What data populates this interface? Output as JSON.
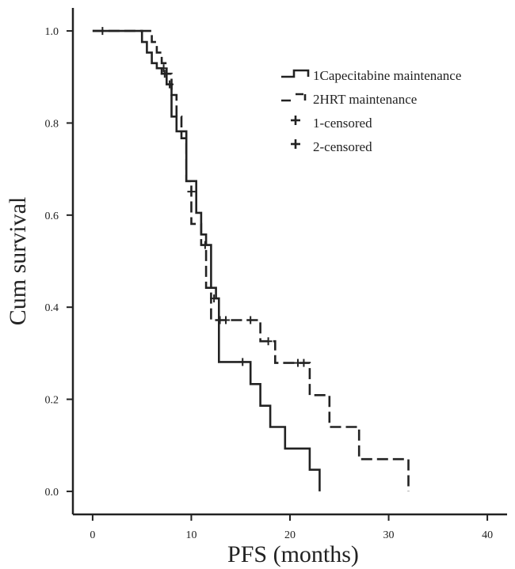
{
  "chart_data": {
    "type": "line",
    "subtype": "kaplan-meier step",
    "title": "",
    "xlabel": "PFS (months)",
    "ylabel": "Cum survival",
    "xlim": [
      -2,
      42
    ],
    "ylim": [
      -0.05,
      1.05
    ],
    "x_ticks": [
      0,
      10,
      20,
      30,
      40
    ],
    "y_ticks": [
      0.0,
      0.2,
      0.4,
      0.6,
      0.8,
      1.0
    ],
    "x_tick_labels": [
      "0",
      "10",
      "20",
      "30",
      "40"
    ],
    "y_tick_labels": [
      "0.0",
      "0.2",
      "0.4",
      "0.6",
      "0.8",
      "1.0"
    ],
    "grid": false,
    "legend_position": "top-right",
    "legend": [
      {
        "label": "1Capecitabine maintenance",
        "symbol": "solid-step"
      },
      {
        "label": "2HRT maintenance",
        "symbol": "dashed-step"
      },
      {
        "label": "1-censored",
        "symbol": "plus"
      },
      {
        "label": "2-censored",
        "symbol": "plus"
      }
    ],
    "series": [
      {
        "name": "1Capecitabine maintenance",
        "style": "solid",
        "color": "#222222",
        "steps": [
          [
            0,
            1.0
          ],
          [
            5,
            0.976
          ],
          [
            5.5,
            0.953
          ],
          [
            6.0,
            0.93
          ],
          [
            6.5,
            0.919
          ],
          [
            7.0,
            0.907
          ],
          [
            7.5,
            0.884
          ],
          [
            8.0,
            0.814
          ],
          [
            8.5,
            0.782
          ],
          [
            9.5,
            0.674
          ],
          [
            10.5,
            0.605
          ],
          [
            11.0,
            0.558
          ],
          [
            11.5,
            0.535
          ],
          [
            12.0,
            0.442
          ],
          [
            12.5,
            0.419
          ],
          [
            12.8,
            0.281
          ],
          [
            15.5,
            0.281
          ],
          [
            16.0,
            0.233
          ],
          [
            17.0,
            0.186
          ],
          [
            18.0,
            0.14
          ],
          [
            19.5,
            0.093
          ],
          [
            22.0,
            0.047
          ],
          [
            23.0,
            0.0
          ]
        ],
        "end_x": 23.0
      },
      {
        "name": "2HRT maintenance",
        "style": "dashed",
        "color": "#222222",
        "steps": [
          [
            0,
            1.0
          ],
          [
            6.0,
            0.976
          ],
          [
            6.5,
            0.953
          ],
          [
            7.0,
            0.93
          ],
          [
            7.5,
            0.907
          ],
          [
            8.0,
            0.861
          ],
          [
            8.5,
            0.814
          ],
          [
            9.0,
            0.767
          ],
          [
            9.5,
            0.674
          ],
          [
            10.0,
            0.581
          ],
          [
            11.0,
            0.535
          ],
          [
            11.5,
            0.442
          ],
          [
            12.0,
            0.372
          ],
          [
            16.5,
            0.372
          ],
          [
            17.0,
            0.326
          ],
          [
            18.5,
            0.279
          ],
          [
            20.5,
            0.279
          ],
          [
            21.5,
            0.279
          ],
          [
            22.0,
            0.209
          ],
          [
            24.0,
            0.14
          ],
          [
            27.0,
            0.07
          ],
          [
            32.0,
            0.0
          ]
        ],
        "end_x": 32.0
      }
    ],
    "censored": [
      {
        "series": "1Capecitabine maintenance",
        "points": [
          [
            1.0,
            1.0
          ],
          [
            7.2,
            0.919
          ],
          [
            7.8,
            0.884
          ],
          [
            10.0,
            0.651
          ],
          [
            11.4,
            0.535
          ],
          [
            12.3,
            0.419
          ],
          [
            15.2,
            0.281
          ]
        ]
      },
      {
        "series": "2HRT maintenance",
        "points": [
          [
            7.3,
            0.907
          ],
          [
            12.9,
            0.372
          ],
          [
            13.5,
            0.372
          ],
          [
            16.0,
            0.372
          ],
          [
            17.8,
            0.326
          ],
          [
            20.8,
            0.279
          ],
          [
            21.4,
            0.279
          ]
        ]
      }
    ]
  }
}
